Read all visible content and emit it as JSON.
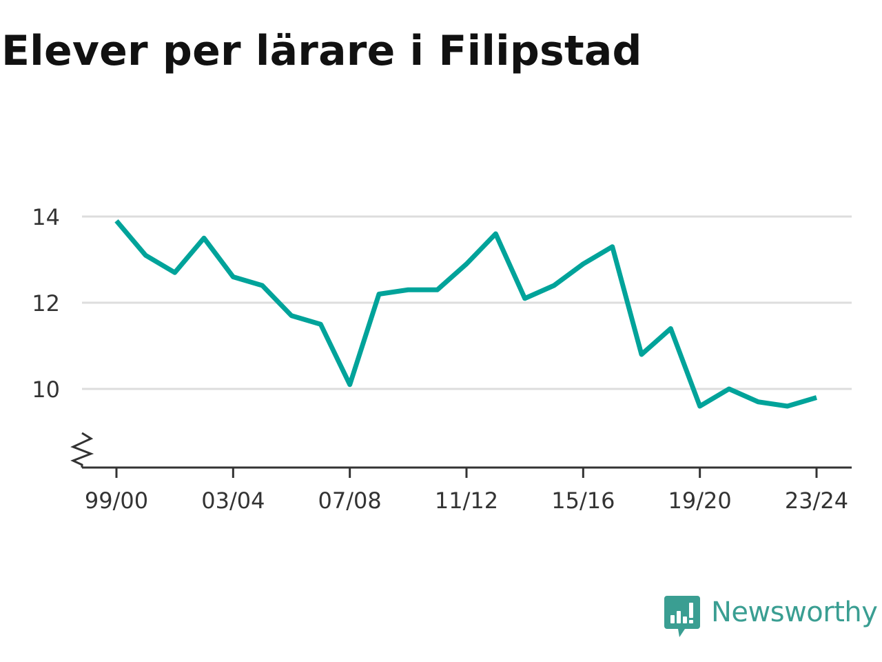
{
  "title": "Elever per lärare i Filipstad",
  "brand": {
    "name": "Newsworthy",
    "logo_icon": "newsworthy-bar-chart-logo-icon",
    "color": "#3a9e92"
  },
  "chart_data": {
    "type": "line",
    "title": "Elever per lärare i Filipstad",
    "xlabel": "",
    "ylabel": "",
    "x": [
      "99/00",
      "00/01",
      "01/02",
      "02/03",
      "03/04",
      "04/05",
      "05/06",
      "06/07",
      "07/08",
      "08/09",
      "09/10",
      "10/11",
      "11/12",
      "12/13",
      "13/14",
      "14/15",
      "15/16",
      "16/17",
      "17/18",
      "18/19",
      "19/20",
      "20/21",
      "21/22",
      "22/23",
      "23/24"
    ],
    "x_tick_labels": [
      "99/00",
      "03/04",
      "07/08",
      "11/12",
      "15/16",
      "19/20",
      "23/24"
    ],
    "series": [
      {
        "values": [
          13.9,
          13.1,
          12.7,
          13.5,
          12.6,
          12.4,
          11.7,
          11.5,
          10.1,
          12.2,
          12.3,
          12.3,
          12.9,
          13.6,
          12.1,
          12.4,
          12.9,
          13.3,
          10.8,
          11.4,
          9.6,
          10.0,
          9.7,
          9.6,
          9.8
        ],
        "color": "#00a39a"
      }
    ],
    "y_ticks": [
      10,
      12,
      14
    ],
    "ylim": [
      8.2,
      14.2
    ],
    "y_axis_break": true,
    "grid": "horizontal",
    "legend": "none",
    "colors": {
      "line": "#00a39a",
      "grid": "#dddddd",
      "axis": "#333333"
    }
  }
}
